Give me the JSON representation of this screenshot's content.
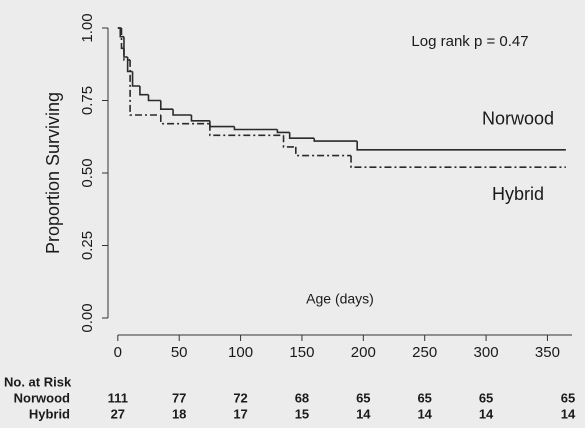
{
  "chart_data": {
    "type": "survival",
    "annotation": "Log rank p = 0.47",
    "xlabel": "Age (days)",
    "ylabel": "Proportion Surviving",
    "xlim": [
      -8,
      370
    ],
    "xticks": [
      0,
      50,
      100,
      150,
      200,
      250,
      300,
      350
    ],
    "ylim": [
      0,
      1
    ],
    "yticks": [
      {
        "value": 0,
        "label": "0.00"
      },
      {
        "value": 0.25,
        "label": "0.25"
      },
      {
        "value": 0.5,
        "label": "0.50"
      },
      {
        "value": 0.75,
        "label": "0.75"
      },
      {
        "value": 1,
        "label": "1.00"
      }
    ],
    "series": [
      {
        "name": "Norwood",
        "color": "#2a2a2a",
        "dash": "none",
        "x": [
          0,
          2,
          5,
          8,
          12,
          18,
          25,
          35,
          45,
          60,
          75,
          95,
          130,
          140,
          160,
          195
        ],
        "values": [
          1.0,
          0.97,
          0.9,
          0.85,
          0.8,
          0.77,
          0.75,
          0.72,
          0.7,
          0.68,
          0.66,
          0.65,
          0.64,
          0.62,
          0.61,
          0.58
        ]
      },
      {
        "name": "Hybrid",
        "color": "#2a2a2a",
        "dash": "7 3 2 3",
        "x": [
          0,
          3,
          5,
          10,
          35,
          75,
          135,
          145,
          190
        ],
        "values": [
          1.0,
          0.93,
          0.89,
          0.7,
          0.67,
          0.63,
          0.59,
          0.56,
          0.52
        ]
      }
    ],
    "x_end": 365,
    "risk_table": {
      "title": "No. at Risk",
      "rows": [
        {
          "name": "Norwood",
          "values": [
            111,
            77,
            72,
            68,
            65,
            65,
            65,
            65
          ]
        },
        {
          "name": "Hybrid",
          "values": [
            27,
            18,
            17,
            15,
            14,
            14,
            14,
            14
          ]
        }
      ]
    }
  }
}
